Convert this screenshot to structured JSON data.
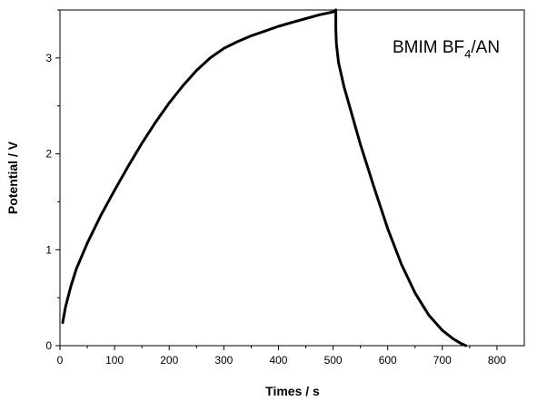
{
  "chart_data": {
    "type": "line",
    "title": "",
    "xlabel": "Times / s",
    "ylabel": "Potential / V",
    "xlim": [
      0,
      850
    ],
    "ylim": [
      0,
      3.5
    ],
    "x_ticks": [
      0,
      100,
      200,
      300,
      400,
      500,
      600,
      700,
      800
    ],
    "y_ticks": [
      0,
      1,
      2,
      3
    ],
    "grid": false,
    "legend": "none",
    "annotation": {
      "main": "BMIM BF",
      "subscript": "4",
      "suffix": "/AN"
    },
    "line_color": "#000000",
    "series": [
      {
        "x": [
          5,
          10,
          20,
          30,
          50,
          75,
          100,
          125,
          150,
          175,
          200,
          225,
          250,
          275,
          300,
          325,
          350,
          375,
          400,
          425,
          450,
          475,
          500,
          505,
          505,
          506,
          510,
          520,
          530,
          550,
          575,
          600,
          625,
          650,
          675,
          700,
          720,
          735,
          743
        ],
        "y": [
          0.24,
          0.4,
          0.62,
          0.8,
          1.07,
          1.36,
          1.62,
          1.87,
          2.11,
          2.33,
          2.53,
          2.71,
          2.87,
          3.0,
          3.1,
          3.17,
          3.23,
          3.28,
          3.33,
          3.37,
          3.41,
          3.45,
          3.48,
          3.5,
          3.3,
          3.15,
          2.95,
          2.7,
          2.5,
          2.1,
          1.65,
          1.22,
          0.85,
          0.55,
          0.32,
          0.16,
          0.07,
          0.02,
          0.0
        ]
      }
    ]
  }
}
